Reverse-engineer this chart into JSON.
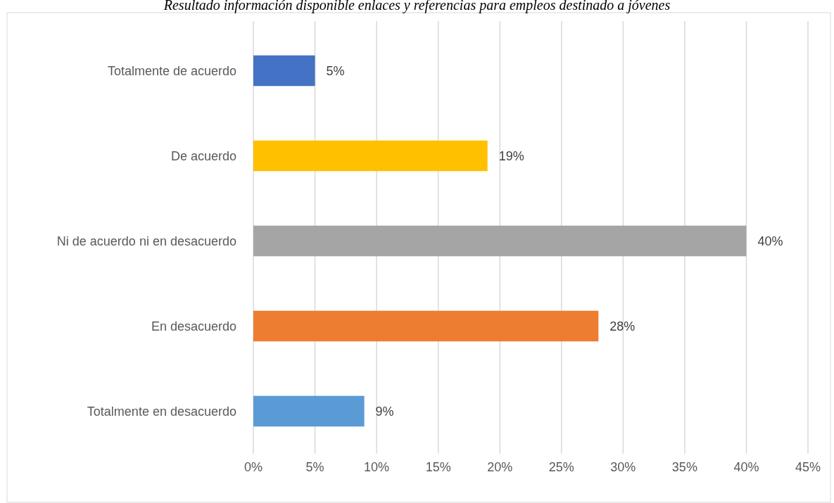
{
  "chart_data": {
    "type": "bar",
    "orientation": "horizontal",
    "title": "Resultado información disponible enlaces y referencias para empleos destinado a jóvenes",
    "categories": [
      "Totalmente de acuerdo",
      "De acuerdo",
      "Ni de acuerdo ni en desacuerdo",
      "En desacuerdo",
      "Totalmente en desacuerdo"
    ],
    "values": [
      5,
      19,
      40,
      28,
      9
    ],
    "colors": [
      "#4472c4",
      "#ffc000",
      "#a5a5a5",
      "#ed7d31",
      "#5b9bd5"
    ],
    "xlim": [
      0,
      45
    ],
    "xticks": [
      {
        "value": 0,
        "label": "0%"
      },
      {
        "value": 5,
        "label": "5%"
      },
      {
        "value": 10,
        "label": "10%"
      },
      {
        "value": 15,
        "label": "15%"
      },
      {
        "value": 20,
        "label": "20%"
      },
      {
        "value": 25,
        "label": "25%"
      },
      {
        "value": 30,
        "label": "30%"
      },
      {
        "value": 35,
        "label": "35%"
      },
      {
        "value": 40,
        "label": "40%"
      },
      {
        "value": 45,
        "label": "45%"
      }
    ],
    "value_labels": [
      "5%",
      "19%",
      "40%",
      "28%",
      "9%"
    ],
    "grid": "x"
  }
}
